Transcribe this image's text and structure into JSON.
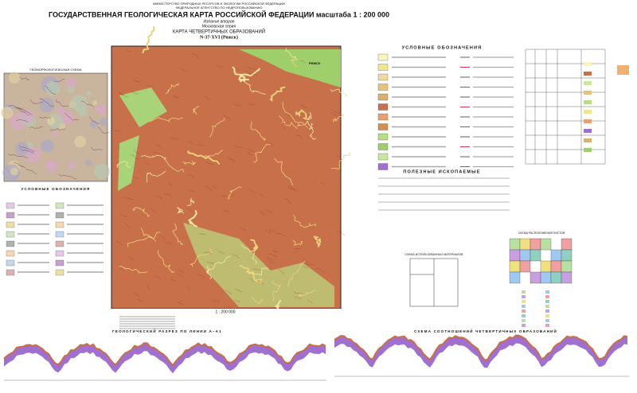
{
  "header": {
    "ministry": "МИНИСТЕРСТВО ПРИРОДНЫХ РЕСУРСОВ И ЭКОЛОГИИ РОССИЙСКОЙ ФЕДЕРАЦИИ",
    "agency": "ФЕДЕРАЛЬНОЕ АГЕНТСТВО ПО НЕДРОПОЛЬЗОВАНИЮ",
    "title": "ГОСУДАРСТВЕННАЯ ГЕОЛОГИЧЕСКАЯ КАРТА РОССИЙСКОЙ ФЕДЕРАЦИИ масштаба 1 : 200 000",
    "edition": "Издание второе",
    "series": "Московская серия",
    "map_title": "КАРТА ЧЕТВЕРТИЧНЫХ ОБРАЗОВАНИЙ",
    "sheet": "N-37-XVI (Ряжск)"
  },
  "map": {
    "scale": "1 : 200 000",
    "city": "РЯЖСК"
  },
  "inset": {
    "title": "ГЕОМОРФОЛОГИЧЕСКАЯ СХЕМА",
    "legend_title": "УСЛОВНЫЕ ОБОЗНАЧЕНИЯ"
  },
  "legend": {
    "title": "УСЛОВНЫЕ ОБОЗНАЧЕНИЯ",
    "minerals_title": "ПОЛЕЗНЫЕ ИСКОПАЕМЫЕ"
  },
  "materials": {
    "title": "СХЕМА ИСПОЛЬЗОВАННЫХ МАТЕРИАЛОВ"
  },
  "sheets": {
    "title": "СХЕМА РАСПОЛОЖЕНИЯ ЛИСТОВ"
  },
  "sections": {
    "profile_title": "ГЕОЛОГИЧЕСКИЙ РАЗРЕЗ ПО ЛИНИИ А–А1",
    "scheme_title": "СХЕМА СООТНОШЕНИЙ ЧЕТВЕРТИЧНЫХ ОБРАЗОВАНИЙ"
  }
}
